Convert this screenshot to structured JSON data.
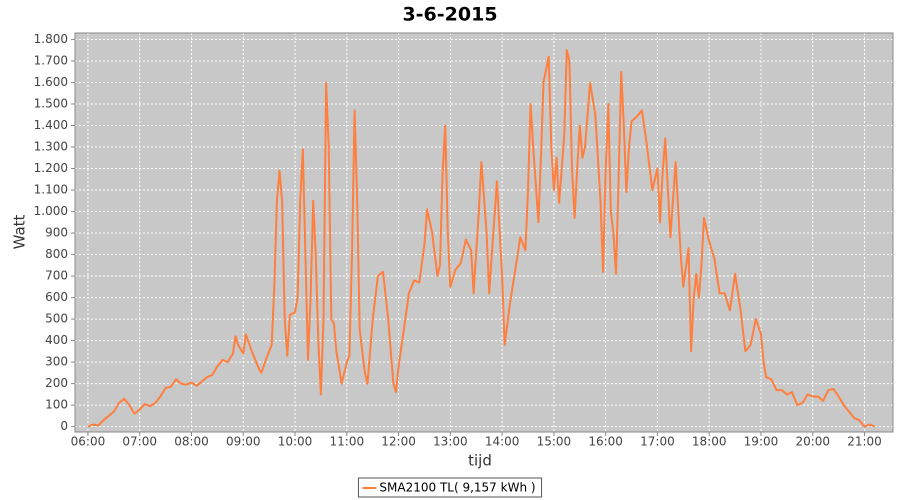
{
  "chart_data": {
    "type": "line",
    "title": "3-6-2015",
    "xlabel": "tijd",
    "ylabel": "Watt",
    "x": [
      6.0,
      6.1,
      6.2,
      6.3,
      6.4,
      6.5,
      6.6,
      6.7,
      6.8,
      6.9,
      7.0,
      7.1,
      7.2,
      7.3,
      7.4,
      7.5,
      7.6,
      7.7,
      7.8,
      7.9,
      8.0,
      8.1,
      8.2,
      8.3,
      8.4,
      8.5,
      8.6,
      8.7,
      8.8,
      8.85,
      8.9,
      9.0,
      9.05,
      9.15,
      9.3,
      9.35,
      9.45,
      9.55,
      9.6,
      9.65,
      9.7,
      9.75,
      9.8,
      9.85,
      9.9,
      10.0,
      10.05,
      10.1,
      10.15,
      10.2,
      10.25,
      10.3,
      10.35,
      10.4,
      10.45,
      10.5,
      10.55,
      10.6,
      10.65,
      10.7,
      10.75,
      10.8,
      10.9,
      11.0,
      11.05,
      11.1,
      11.15,
      11.2,
      11.25,
      11.35,
      11.4,
      11.5,
      11.6,
      11.7,
      11.8,
      11.9,
      11.95,
      12.0,
      12.1,
      12.2,
      12.3,
      12.4,
      12.5,
      12.55,
      12.65,
      12.75,
      12.8,
      12.85,
      12.9,
      12.95,
      13.0,
      13.1,
      13.2,
      13.3,
      13.4,
      13.45,
      13.55,
      13.6,
      13.7,
      13.75,
      13.8,
      13.9,
      14.0,
      14.05,
      14.15,
      14.3,
      14.35,
      14.45,
      14.5,
      14.55,
      14.6,
      14.7,
      14.75,
      14.8,
      14.9,
      14.95,
      15.0,
      15.05,
      15.1,
      15.2,
      15.25,
      15.3,
      15.35,
      15.4,
      15.45,
      15.5,
      15.55,
      15.6,
      15.7,
      15.8,
      15.9,
      15.95,
      16.0,
      16.05,
      16.1,
      16.15,
      16.2,
      16.25,
      16.3,
      16.35,
      16.4,
      16.45,
      16.5,
      16.6,
      16.7,
      16.8,
      16.9,
      17.0,
      17.05,
      17.1,
      17.15,
      17.25,
      17.35,
      17.45,
      17.5,
      17.6,
      17.65,
      17.7,
      17.75,
      17.8,
      17.85,
      17.9,
      18.0,
      18.1,
      18.2,
      18.3,
      18.4,
      18.5,
      18.6,
      18.7,
      18.8,
      18.9,
      19.0,
      19.05,
      19.1,
      19.2,
      19.3,
      19.4,
      19.5,
      19.6,
      19.7,
      19.8,
      19.9,
      20.0,
      20.1,
      20.2,
      20.3,
      20.4,
      20.5,
      20.6,
      20.7,
      20.8,
      20.9,
      21.0,
      21.1,
      21.2
    ],
    "series": [
      {
        "name": "SMA2100 TL( 9,157 kWh )",
        "color": "#ff7f3f",
        "values": [
          0,
          10,
          5,
          30,
          50,
          70,
          110,
          130,
          100,
          60,
          80,
          105,
          95,
          110,
          140,
          180,
          185,
          220,
          200,
          195,
          205,
          190,
          210,
          230,
          240,
          280,
          310,
          300,
          340,
          420,
          380,
          340,
          430,
          360,
          270,
          250,
          320,
          380,
          650,
          1050,
          1190,
          1050,
          500,
          330,
          520,
          530,
          600,
          1050,
          1290,
          800,
          310,
          600,
          1050,
          800,
          400,
          150,
          500,
          1600,
          1300,
          500,
          480,
          350,
          200,
          300,
          330,
          800,
          1470,
          1050,
          450,
          250,
          200,
          500,
          700,
          720,
          500,
          200,
          160,
          280,
          450,
          620,
          680,
          670,
          850,
          1010,
          900,
          700,
          750,
          1180,
          1400,
          900,
          650,
          730,
          760,
          870,
          820,
          620,
          1000,
          1230,
          900,
          620,
          800,
          1140,
          700,
          380,
          570,
          800,
          880,
          820,
          1100,
          1500,
          1300,
          950,
          1250,
          1600,
          1720,
          1300,
          1100,
          1250,
          1040,
          1350,
          1750,
          1700,
          1200,
          970,
          1200,
          1400,
          1250,
          1300,
          1600,
          1450,
          1050,
          720,
          1200,
          1500,
          1000,
          900,
          710,
          1150,
          1650,
          1400,
          1090,
          1300,
          1420,
          1440,
          1470,
          1300,
          1100,
          1200,
          950,
          1180,
          1340,
          880,
          1230,
          800,
          650,
          830,
          350,
          600,
          710,
          600,
          750,
          970,
          860,
          780,
          620,
          620,
          540,
          710,
          550,
          350,
          380,
          500,
          430,
          300,
          230,
          220,
          170,
          170,
          150,
          160,
          100,
          110,
          150,
          140,
          140,
          120,
          170,
          175,
          140,
          100,
          70,
          40,
          30,
          0,
          10,
          0
        ]
      }
    ],
    "xlim": [
      5.75,
      21.55
    ],
    "xticks": [
      {
        "value": 6,
        "label": "06:00"
      },
      {
        "value": 7,
        "label": "07:00"
      },
      {
        "value": 8,
        "label": "08:00"
      },
      {
        "value": 9,
        "label": "09:00"
      },
      {
        "value": 10,
        "label": "10:00"
      },
      {
        "value": 11,
        "label": "11:00"
      },
      {
        "value": 12,
        "label": "12:00"
      },
      {
        "value": 13,
        "label": "13:00"
      },
      {
        "value": 14,
        "label": "14:00"
      },
      {
        "value": 15,
        "label": "15:00"
      },
      {
        "value": 16,
        "label": "16:00"
      },
      {
        "value": 17,
        "label": "17:00"
      },
      {
        "value": 18,
        "label": "18:00"
      },
      {
        "value": 19,
        "label": "19:00"
      },
      {
        "value": 20,
        "label": "20:00"
      },
      {
        "value": 21,
        "label": "21:00"
      }
    ],
    "ylim": [
      -25,
      1830
    ],
    "yticks": [
      0,
      100,
      200,
      300,
      400,
      500,
      600,
      700,
      800,
      900,
      {
        "value": 1000,
        "label": "1.000"
      },
      {
        "value": 1100,
        "label": "1.100"
      },
      {
        "value": 1200,
        "label": "1.200"
      },
      {
        "value": 1300,
        "label": "1.300"
      },
      {
        "value": 1400,
        "label": "1.400"
      },
      {
        "value": 1500,
        "label": "1.500"
      },
      {
        "value": 1600,
        "label": "1.600"
      },
      {
        "value": 1700,
        "label": "1.700"
      },
      {
        "value": 1800,
        "label": "1.800"
      }
    ],
    "grid": true,
    "legend": "bottom"
  }
}
